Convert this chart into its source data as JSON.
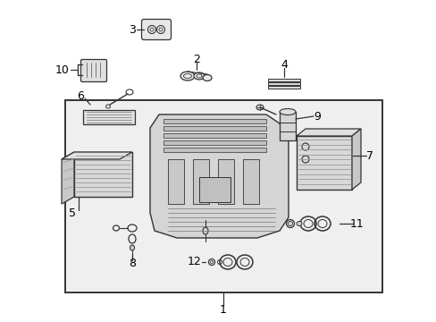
{
  "bg_color": "#ffffff",
  "line_color": "#333333",
  "light_gray": "#d8d8d8",
  "mid_gray": "#bbbbbb",
  "dark_gray": "#888888",
  "box_bg": "#ececec",
  "figsize": [
    4.89,
    3.6
  ],
  "dpi": 100,
  "labels": [
    "1",
    "2",
    "3",
    "4",
    "5",
    "6",
    "7",
    "8",
    "9",
    "10",
    "11",
    "12"
  ]
}
